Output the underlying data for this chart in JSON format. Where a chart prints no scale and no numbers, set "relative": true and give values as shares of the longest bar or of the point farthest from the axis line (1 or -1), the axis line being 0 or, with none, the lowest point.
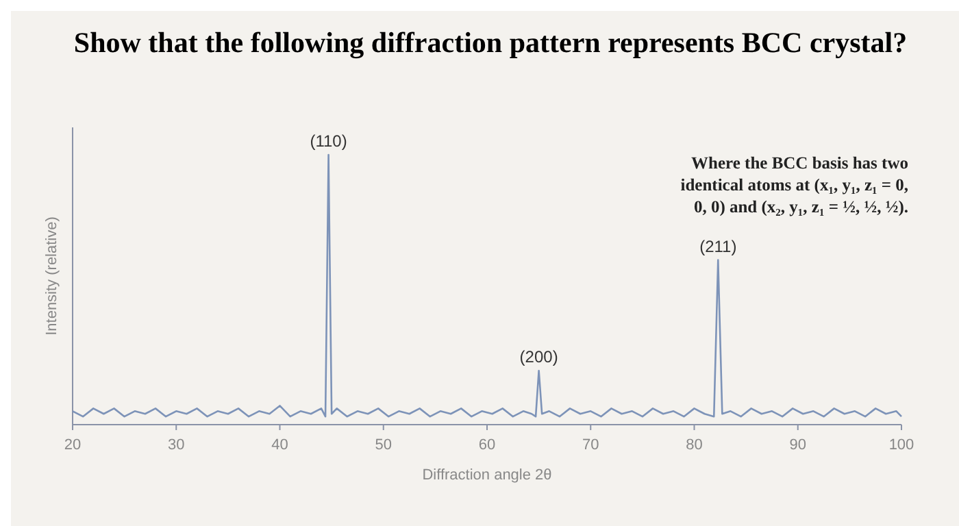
{
  "chart_data": {
    "type": "line",
    "title": "Show that the following diffraction pattern represents BCC crystal?",
    "xlabel": "Diffraction angle 2θ",
    "ylabel": "Intensity (relative)",
    "relative": true,
    "tick_labels": "x",
    "xlim": [
      20,
      100
    ],
    "xticks": [
      20,
      30,
      40,
      50,
      60,
      70,
      80,
      90,
      100
    ],
    "x": [
      20,
      21,
      22,
      23,
      24,
      25,
      26,
      27,
      28,
      29,
      30,
      31,
      32,
      33,
      34,
      35,
      36,
      37,
      38,
      39,
      40,
      41,
      42,
      43,
      44,
      44.4,
      44.7,
      45.0,
      45.5,
      46.5,
      47.5,
      48.5,
      49.5,
      50.5,
      51.5,
      52.5,
      53.5,
      54.5,
      55.5,
      56.5,
      57.5,
      58.5,
      59.5,
      60.5,
      61.5,
      62.5,
      63.5,
      64.3,
      64.7,
      65.0,
      65.3,
      66,
      67,
      68,
      69,
      70,
      71,
      72,
      73,
      74,
      75,
      76,
      77,
      78,
      79,
      80,
      81,
      81.9,
      82.3,
      82.7,
      83.5,
      84.5,
      85.5,
      86.5,
      87.5,
      88.5,
      89.5,
      90.5,
      91.5,
      92.5,
      93.5,
      94.5,
      95.5,
      96.5,
      97.5,
      98.5,
      99.5,
      100
    ],
    "series": [
      {
        "color": "#7d93b8",
        "values": [
          0.05,
          0.03,
          0.06,
          0.04,
          0.06,
          0.03,
          0.05,
          0.04,
          0.06,
          0.03,
          0.05,
          0.04,
          0.06,
          0.03,
          0.05,
          0.04,
          0.06,
          0.03,
          0.05,
          0.04,
          0.07,
          0.03,
          0.05,
          0.04,
          0.06,
          0.03,
          1,
          0.04,
          0.06,
          0.03,
          0.05,
          0.04,
          0.06,
          0.03,
          0.05,
          0.04,
          0.06,
          0.03,
          0.05,
          0.04,
          0.06,
          0.03,
          0.05,
          0.04,
          0.06,
          0.03,
          0.05,
          0.04,
          0.03,
          0.2,
          0.04,
          0.05,
          0.03,
          0.06,
          0.04,
          0.05,
          0.03,
          0.06,
          0.04,
          0.05,
          0.03,
          0.06,
          0.04,
          0.05,
          0.03,
          0.06,
          0.04,
          0.03,
          0.61,
          0.04,
          0.05,
          0.03,
          0.06,
          0.04,
          0.05,
          0.03,
          0.06,
          0.04,
          0.05,
          0.03,
          0.06,
          0.04,
          0.05,
          0.03,
          0.06,
          0.04,
          0.05,
          0.03
        ]
      }
    ],
    "annotations": [
      {
        "text": "(110)",
        "x": 44.7,
        "y": 1
      },
      {
        "text": "(200)",
        "x": 65,
        "y": 0.2
      },
      {
        "text": "(211)",
        "x": 82.3,
        "y": 0.61
      },
      "Where the BCC basis has two identical atoms at (x₁, y₁, z₁ = 0, 0, 0) and (x₂, y₁, z₁ = ½, ½, ½)."
    ]
  }
}
